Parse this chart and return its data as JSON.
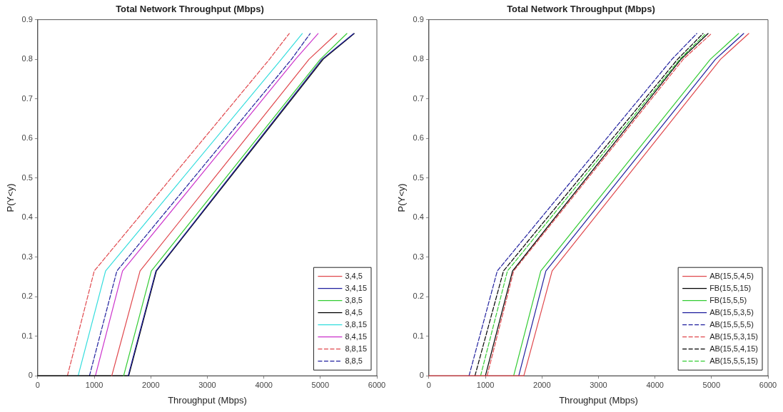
{
  "chart_data": [
    {
      "type": "line",
      "title": "Total Network Throughput (Mbps)",
      "xlabel": "Throughput (Mbps)",
      "ylabel": "P(Y<y)",
      "xlim": [
        0,
        6000
      ],
      "xticks": [
        0,
        1000,
        2000,
        3000,
        4000,
        5000,
        6000
      ],
      "ylim": [
        0,
        0.9
      ],
      "yticks": [
        0,
        0.1,
        0.2,
        0.3,
        0.4,
        0.5,
        0.6,
        0.7,
        0.8,
        0.9
      ],
      "grid": false,
      "legend": "bottom right",
      "series": [
        {
          "name": "3,4,5",
          "color": "#e0474c",
          "line_style": "solid",
          "x": [
            1310,
            1810,
            4800,
            5290
          ],
          "values": [
            0,
            0.265,
            0.8,
            0.865
          ]
        },
        {
          "name": "3,4,15",
          "color": "#1f1f9e",
          "line_style": "solid",
          "x": [
            1600,
            2090,
            5030,
            5590
          ],
          "values": [
            0,
            0.265,
            0.8,
            0.865
          ]
        },
        {
          "name": "3,8,5",
          "color": "#33cc33",
          "line_style": "solid",
          "x": [
            1520,
            2010,
            5000,
            5470
          ],
          "values": [
            0,
            0.265,
            0.8,
            0.865
          ]
        },
        {
          "name": "8,4,5",
          "color": "#000000",
          "line_style": "solid",
          "x": [
            0,
            1610,
            2100,
            5050,
            5600
          ],
          "values": [
            0,
            0,
            0.265,
            0.8,
            0.865
          ]
        },
        {
          "name": "3,8,15",
          "color": "#33dddd",
          "line_style": "solid",
          "x": [
            715,
            1200,
            4310,
            4680
          ],
          "values": [
            0,
            0.265,
            0.8,
            0.865
          ]
        },
        {
          "name": "8,4,15",
          "color": "#cc33cc",
          "line_style": "solid",
          "x": [
            1020,
            1500,
            4560,
            4960
          ],
          "values": [
            0,
            0.265,
            0.8,
            0.865
          ]
        },
        {
          "name": "8,8,15",
          "color": "#e0474c",
          "line_style": "dashed",
          "x": [
            525,
            1000,
            4100,
            4450
          ],
          "values": [
            0,
            0.265,
            0.8,
            0.865
          ]
        },
        {
          "name": "8,8,5",
          "color": "#1f1f9e",
          "line_style": "dashed",
          "x": [
            915,
            1400,
            4490,
            4820
          ],
          "values": [
            0,
            0.265,
            0.8,
            0.865
          ]
        }
      ]
    },
    {
      "type": "line",
      "title": "Total Network Throughput (Mbps)",
      "xlabel": "Throughput (Mbps)",
      "ylabel": "P(Y<y)",
      "xlim": [
        0,
        6000
      ],
      "xticks": [
        0,
        1000,
        2000,
        3000,
        4000,
        5000,
        6000
      ],
      "ylim": [
        0,
        0.9
      ],
      "yticks": [
        0,
        0.1,
        0.2,
        0.3,
        0.4,
        0.5,
        0.6,
        0.7,
        0.8,
        0.9
      ],
      "grid": false,
      "legend": "bottom right",
      "series": [
        {
          "name": "AB(15,5,4,5)",
          "color": "#e0474c",
          "line_style": "solid",
          "x": [
            0,
            1680,
            2180,
            5160,
            5660
          ],
          "values": [
            0,
            0,
            0.265,
            0.8,
            0.865
          ]
        },
        {
          "name": "FB(15,5,15)",
          "color": "#000000",
          "line_style": "solid",
          "x": [
            1000,
            1480,
            4460,
            4940
          ],
          "values": [
            0,
            0.265,
            0.8,
            0.865
          ]
        },
        {
          "name": "FB(15,5,5)",
          "color": "#33cc33",
          "line_style": "solid",
          "x": [
            1500,
            1980,
            4980,
            5480
          ],
          "values": [
            0,
            0.265,
            0.8,
            0.865
          ]
        },
        {
          "name": "AB(15,5,3,5)",
          "color": "#1f1f9e",
          "line_style": "solid",
          "x": [
            1590,
            2070,
            5070,
            5570
          ],
          "values": [
            0,
            0.265,
            0.8,
            0.865
          ]
        },
        {
          "name": "AB(15,5,5,5)",
          "color": "#1f1f9e",
          "line_style": "dashed",
          "x": [
            710,
            1210,
            4300,
            4740
          ],
          "values": [
            0,
            0.265,
            0.8,
            0.865
          ]
        },
        {
          "name": "AB(15,5,3,15)",
          "color": "#e0474c",
          "line_style": "dashed",
          "x": [
            1030,
            1500,
            4500,
            5000
          ],
          "values": [
            0,
            0.265,
            0.8,
            0.865
          ]
        },
        {
          "name": "AB(15,5,4,15)",
          "color": "#000000",
          "line_style": "dashed",
          "x": [
            815,
            1320,
            4400,
            4850
          ],
          "values": [
            0,
            0.265,
            0.8,
            0.865
          ]
        },
        {
          "name": "AB(15,5,5,15)",
          "color": "#33cc33",
          "line_style": "dashed",
          "x": [
            915,
            1390,
            4440,
            4900
          ],
          "values": [
            0,
            0.265,
            0.8,
            0.865
          ]
        }
      ]
    }
  ]
}
